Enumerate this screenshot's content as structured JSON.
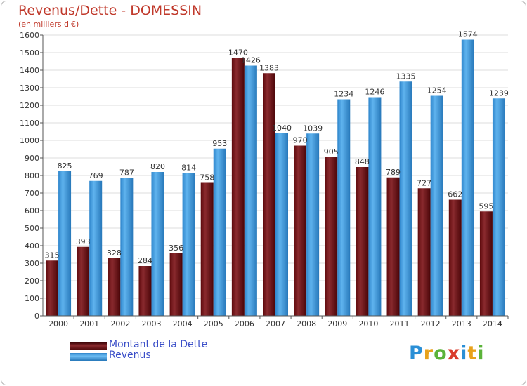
{
  "header": {
    "title": "Revenus/Dette - DOMESSIN",
    "subtitle": "(en milliers d'€)"
  },
  "legend": {
    "items": [
      {
        "label": "Montant de la Dette",
        "color": "#7a1418"
      },
      {
        "label": "Revenus",
        "color": "#3a9ce0"
      }
    ]
  },
  "logo": {
    "text": "Proxiti",
    "letters": [
      {
        "ch": "P",
        "color": "#2a8fd6"
      },
      {
        "ch": "r",
        "color": "#e8a21b"
      },
      {
        "ch": "o",
        "color": "#5bb33a"
      },
      {
        "ch": "x",
        "color": "#d93b2b"
      },
      {
        "ch": "i",
        "color": "#2a8fd6"
      },
      {
        "ch": "t",
        "color": "#e8a21b"
      },
      {
        "ch": "i",
        "color": "#5bb33a"
      }
    ]
  },
  "chart_data": {
    "type": "bar",
    "categories": [
      "2000",
      "2001",
      "2002",
      "2003",
      "2004",
      "2005",
      "2006",
      "2007",
      "2008",
      "2009",
      "2010",
      "2011",
      "2012",
      "2013",
      "2014"
    ],
    "series": [
      {
        "name": "Montant de la Dette",
        "color": "#7a1418",
        "values": [
          315,
          393,
          328,
          284,
          356,
          758,
          1470,
          1383,
          970,
          905,
          848,
          789,
          727,
          662,
          595
        ]
      },
      {
        "name": "Revenus",
        "color": "#3a9ce0",
        "values": [
          825,
          769,
          787,
          820,
          814,
          953,
          1426,
          1040,
          1039,
          1234,
          1246,
          1335,
          1254,
          1574,
          1239
        ]
      }
    ],
    "ylim": [
      0,
      1600
    ],
    "yticks": [
      0,
      100,
      200,
      300,
      400,
      500,
      600,
      700,
      800,
      900,
      1000,
      1100,
      1200,
      1300,
      1400,
      1500,
      1600
    ],
    "grid": true,
    "legend_position": "bottom-left"
  }
}
